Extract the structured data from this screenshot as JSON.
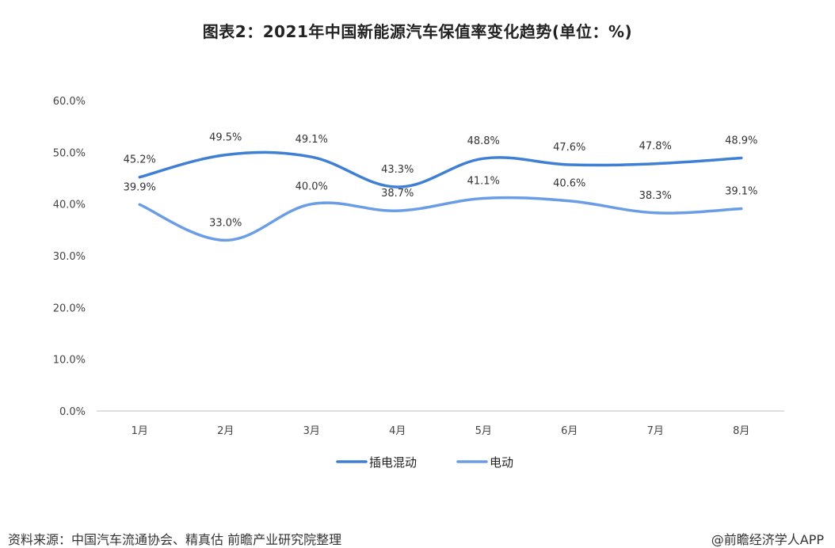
{
  "title": "图表2：2021年中国新能源汽车保值率变化趋势(单位：%)",
  "footer": {
    "source": "资料来源：中国汽车流通协会、精真估 前瞻产业研究院整理",
    "brand": "@前瞻经济学人APP"
  },
  "chart_data": {
    "type": "line",
    "title": "图表2：2021年中国新能源汽车保值率变化趋势(单位：%)",
    "categories": [
      "1月",
      "2月",
      "3月",
      "4月",
      "5月",
      "6月",
      "7月",
      "8月"
    ],
    "series": [
      {
        "name": "插电混动",
        "color": "#3f7fd4",
        "values": [
          45.2,
          49.5,
          49.1,
          43.3,
          48.8,
          47.6,
          47.8,
          48.9
        ],
        "labels": [
          "45.2%",
          "49.5%",
          "49.1%",
          "43.3%",
          "48.8%",
          "47.6%",
          "47.8%",
          "48.9%"
        ]
      },
      {
        "name": "电动",
        "color": "#6a9de6",
        "values": [
          39.9,
          33.0,
          40.0,
          38.7,
          41.1,
          40.6,
          38.3,
          39.1
        ],
        "labels": [
          "39.9%",
          "33.0%",
          "40.0%",
          "38.7%",
          "41.1%",
          "40.6%",
          "38.3%",
          "39.1%"
        ]
      }
    ],
    "yticks": [
      "0.0%",
      "10.0%",
      "20.0%",
      "30.0%",
      "40.0%",
      "50.0%",
      "60.0%"
    ],
    "ylim": [
      0,
      60
    ],
    "xlabel": "",
    "ylabel": "",
    "legend": "bottom-center",
    "grid": false
  }
}
